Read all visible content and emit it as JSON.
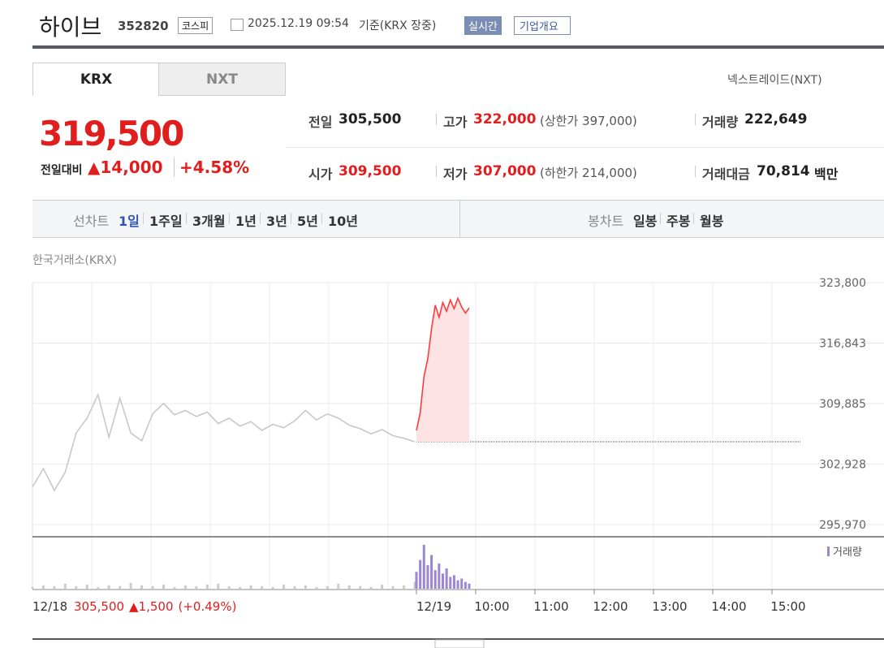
{
  "header": {
    "name": "하이브",
    "code": "352820",
    "market": "코스피",
    "datetime": "2025.12.19 09:54",
    "basis": "기준(KRX 장중)",
    "realtime": "실시간",
    "company_info": "기업개요"
  },
  "tabs": [
    "KRX",
    "NXT"
  ],
  "nxt_link": "넥스트레이드(NXT)",
  "price": {
    "current": "319,500",
    "change_label": "전일대비",
    "change": "▲14,000",
    "change_rate": "+4.58%"
  },
  "stats": [
    {
      "label": "전일",
      "value": "305,500"
    },
    {
      "label": "고가",
      "value": "322,000",
      "sub": "(상한가 397,000)"
    },
    {
      "label": "거래량",
      "value": "222,649"
    },
    {
      "label": "시가",
      "value": "309,500"
    },
    {
      "label": "저가",
      "value": "307,000",
      "sub": "(하한가 214,000)"
    },
    {
      "label": "거래대금",
      "value": "70,814",
      "unit": "백만"
    }
  ],
  "line_chart_menu": {
    "label": "선차트",
    "items": [
      "1일",
      "1주일",
      "3개월",
      "1년",
      "3년",
      "5년",
      "10년"
    ]
  },
  "candle_chart_menu": {
    "label": "봉차트",
    "items": [
      "일봉",
      "주봉",
      "월봉"
    ]
  },
  "chart_data": {
    "type": "line",
    "subtitle": "한국거래소(KRX)",
    "ylim": [
      295970,
      323800
    ],
    "yticks": [
      {
        "value": 295970,
        "label": "295,970"
      },
      {
        "value": 302928,
        "label": "302,928"
      },
      {
        "value": 309885,
        "label": "309,885"
      },
      {
        "value": 316843,
        "label": "316,843"
      },
      {
        "value": 323800,
        "label": "323,800"
      }
    ],
    "previous_close": 305500,
    "series": [
      {
        "name": "12/18",
        "color": "#c8c8c8",
        "values": [
          300300,
          302400,
          299900,
          302000,
          306500,
          308200,
          310900,
          306000,
          310500,
          306500,
          305600,
          308700,
          309900,
          308600,
          309100,
          308400,
          308900,
          307600,
          308200,
          307300,
          307800,
          306800,
          307500,
          307100,
          307900,
          309100,
          308000,
          308700,
          308200,
          307400,
          307000,
          306400,
          306900,
          306200,
          305900,
          305500
        ]
      },
      {
        "name": "12/19",
        "color": "#ff3b3b",
        "values": [
          306800,
          308800,
          313000,
          315000,
          318500,
          321200,
          319800,
          321500,
          320500,
          321800,
          320800,
          322000,
          321000,
          320300,
          320900
        ]
      }
    ],
    "volume": {
      "name": "거래량",
      "color": "#9b86d2",
      "series": [
        [
          2,
          4,
          3,
          6,
          3,
          5,
          2,
          4,
          3,
          7,
          4,
          3,
          5,
          2,
          4,
          3,
          5,
          6,
          3,
          2,
          4,
          3,
          2,
          5,
          3,
          4,
          2,
          3,
          6,
          4,
          3,
          2,
          5,
          3,
          4,
          8
        ],
        [
          20,
          34,
          52,
          28,
          40,
          22,
          30,
          18,
          24,
          14,
          16,
          10,
          12,
          8,
          6
        ]
      ]
    },
    "x_labels": [
      "10:00",
      "11:00",
      "12:00",
      "13:00",
      "14:00",
      "15:00"
    ],
    "footer": {
      "prev_close": "305,500",
      "prev_change": "▲1,500",
      "prev_rate": "(+0.49%)"
    }
  }
}
